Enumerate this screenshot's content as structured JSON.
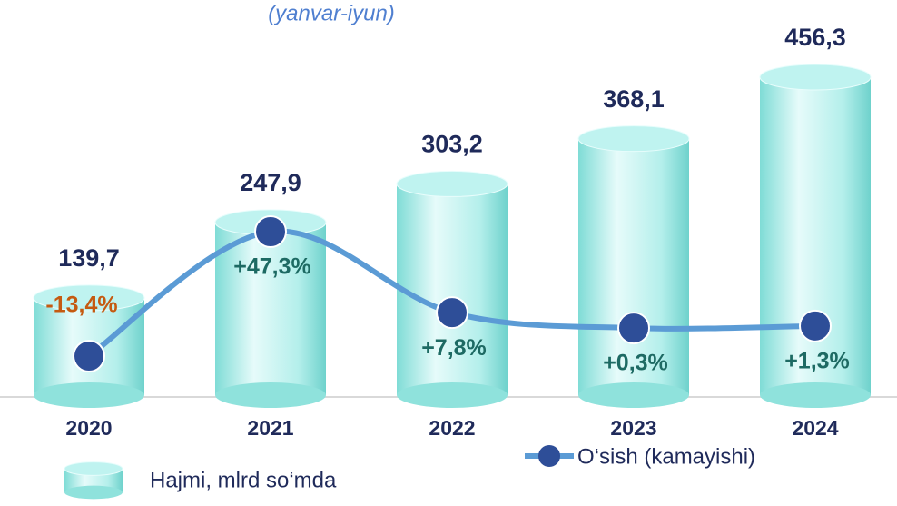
{
  "chart_data": {
    "type": "bar-line",
    "subtitle": "(yanvar-iyun)",
    "categories": [
      "2020",
      "2021",
      "2022",
      "2023",
      "2024"
    ],
    "series": [
      {
        "name": "Hajmi, mlrd so‘mda",
        "type": "bar",
        "color": "#a8ece8",
        "values": [
          139.7,
          247.9,
          303.2,
          368.1,
          456.3
        ],
        "value_labels": [
          "139,7",
          "247,9",
          "303,2",
          "368,1",
          "456,3"
        ],
        "label_color": "#1f2a5a"
      },
      {
        "name": "O‘sish (kamayishi)",
        "type": "line",
        "axis": "y2",
        "color": "#5b9bd5",
        "marker_color": "#2e4e98",
        "values": [
          -13.4,
          47.3,
          7.8,
          0.3,
          1.3
        ],
        "value_labels": [
          "-13,4%",
          "+47,3%",
          "+7,8%",
          "+0,3%",
          "+1,3%"
        ],
        "label_color": "#1d6a63",
        "negative_label_color": "#c55a11"
      }
    ]
  }
}
